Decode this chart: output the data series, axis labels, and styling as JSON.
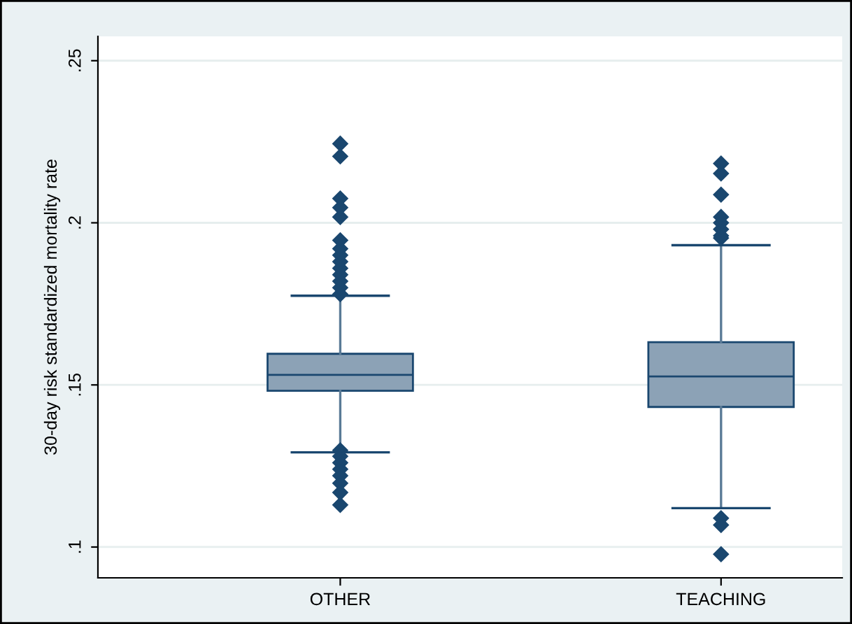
{
  "chart_data": {
    "type": "box",
    "ylabel": "30-day risk standardized mortality rate",
    "categories": [
      "OTHER",
      "TEACHING"
    ],
    "boxes": [
      {
        "low": 0.1292,
        "q1": 0.1482,
        "median": 0.1531,
        "q3": 0.1596,
        "high": 0.1775,
        "outliers": [
          0.178,
          0.18,
          0.182,
          0.184,
          0.186,
          0.188,
          0.19,
          0.192,
          0.1946,
          0.2018,
          0.2047,
          0.2075,
          0.2205,
          0.2244,
          0.1298,
          0.128,
          0.126,
          0.124,
          0.122,
          0.1197,
          0.1168,
          0.113
        ]
      },
      {
        "low": 0.112,
        "q1": 0.1432,
        "median": 0.1526,
        "q3": 0.1632,
        "high": 0.1931,
        "outliers": [
          0.1953,
          0.196,
          0.198,
          0.2,
          0.2018,
          0.2087,
          0.2152,
          0.2183,
          0.1089,
          0.1068,
          0.0978
        ]
      }
    ],
    "color": "#8ca2b6",
    "ylim": [
      0.0905,
      0.2575
    ],
    "yticks": [
      {
        "value": 0.1,
        "label": ".1"
      },
      {
        "value": 0.15,
        "label": ".15"
      },
      {
        "value": 0.2,
        "label": ".2"
      },
      {
        "value": 0.25,
        "label": ".25"
      }
    ],
    "grid": "y"
  }
}
